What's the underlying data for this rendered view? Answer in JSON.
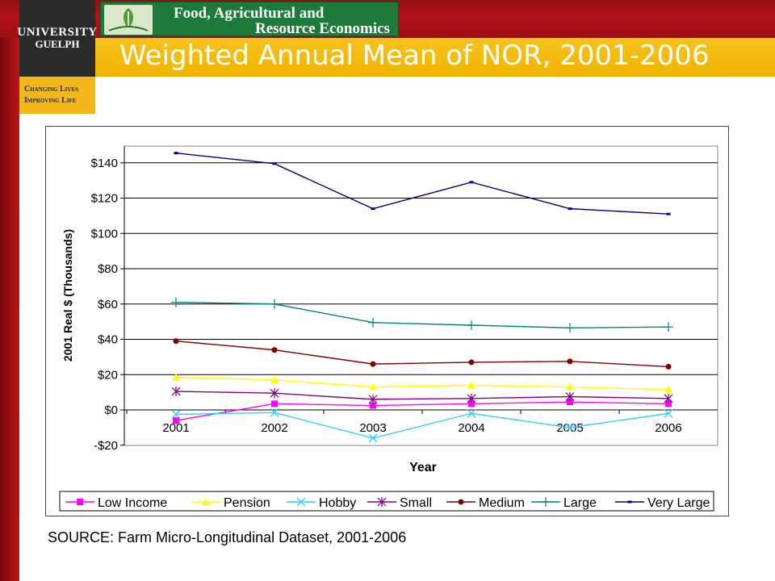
{
  "header": {
    "university_line1": "UNIVERSITY",
    "university_line2": "GUELPH",
    "tagline_line1": "Changing Lives",
    "tagline_line2": "Improving Life",
    "department_line1": "Food, Agricultural and",
    "department_line2": "Resource Economics"
  },
  "slide": {
    "title": "Weighted Annual Mean of NOR, 2001-2006",
    "source": "SOURCE: Farm Micro-Longitudinal Dataset, 2001-2006"
  },
  "colors": {
    "brand_red": "#a81216",
    "brand_gold": "#f2b819",
    "dept_green": "#1e7a3a"
  },
  "chart_data": {
    "type": "line",
    "title": "",
    "xlabel": "Year",
    "ylabel": "2001 Real $ (Thousands)",
    "x": [
      "2001",
      "2002",
      "2003",
      "2004",
      "2005",
      "2006"
    ],
    "ylim": [
      -20,
      150
    ],
    "y_ticks": [
      -20,
      0,
      20,
      40,
      60,
      80,
      100,
      120,
      140
    ],
    "y_tick_labels": [
      "-$20",
      "$0",
      "$20",
      "$40",
      "$60",
      "$80",
      "$100",
      "$120",
      "$140"
    ],
    "grid": true,
    "legend_position": "bottom",
    "series": [
      {
        "name": "Low Income",
        "color": "#ff00ff",
        "marker": "square",
        "values": [
          -6,
          3.5,
          2.5,
          3.5,
          4.5,
          3.5
        ]
      },
      {
        "name": "Pension",
        "color": "#ffff00",
        "marker": "triangle",
        "values": [
          18.5,
          17,
          13,
          14,
          13,
          11.5
        ]
      },
      {
        "name": "Hobby",
        "color": "#33ccff",
        "marker": "x",
        "values": [
          -2.5,
          -1.5,
          -16,
          -2,
          -10,
          -2
        ]
      },
      {
        "name": "Small",
        "color": "#800080",
        "marker": "asterisk",
        "values": [
          10.5,
          9.5,
          6,
          6.5,
          7.5,
          6.5
        ]
      },
      {
        "name": "Medium",
        "color": "#800000",
        "marker": "circle",
        "values": [
          39,
          34,
          26,
          27,
          27.5,
          24.5
        ]
      },
      {
        "name": "Large",
        "color": "#008080",
        "marker": "plus",
        "values": [
          61,
          60,
          49.5,
          48,
          46.5,
          47
        ]
      },
      {
        "name": "Very Large",
        "color": "#000080",
        "marker": "dash",
        "values": [
          145.5,
          139.5,
          114,
          129,
          114,
          111
        ]
      }
    ]
  }
}
